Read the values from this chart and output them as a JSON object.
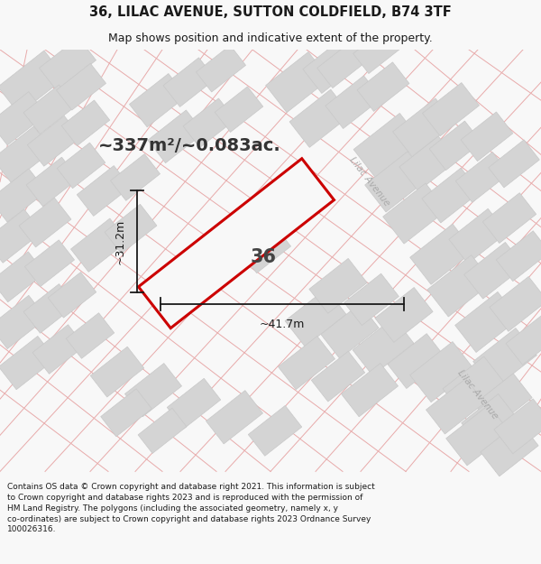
{
  "title_line1": "36, LILAC AVENUE, SUTTON COLDFIELD, B74 3TF",
  "title_line2": "Map shows position and indicative extent of the property.",
  "area_text": "~337m²/~0.083ac.",
  "number_label": "36",
  "dim_width": "~41.7m",
  "dim_height": "~31.2m",
  "street_label1": "Lilac Avenue",
  "street_label2": "Lilac Avenue",
  "footer_text": "Contains OS data © Crown copyright and database right 2021. This information is subject\nto Crown copyright and database rights 2023 and is reproduced with the permission of\nHM Land Registry. The polygons (including the associated geometry, namely x, y\nco-ordinates) are subject to Crown copyright and database rights 2023 Ordnance Survey\n100026316.",
  "bg_color": "#f8f8f8",
  "map_bg": "#f2efef",
  "plot_color_edge": "#cc0000",
  "block_color": "#d4d4d4",
  "block_edge": "#c8c8c8",
  "pink_line": "#e8aaaa",
  "dim_color": "#1a1a1a",
  "title_color": "#1a1a1a",
  "street_color": "#aaaaaa",
  "title_fontsize": 10.5,
  "subtitle_fontsize": 9,
  "area_fontsize": 14,
  "label_fontsize": 15,
  "dim_fontsize": 9,
  "street_fontsize": 7.5,
  "footer_fontsize": 6.5
}
